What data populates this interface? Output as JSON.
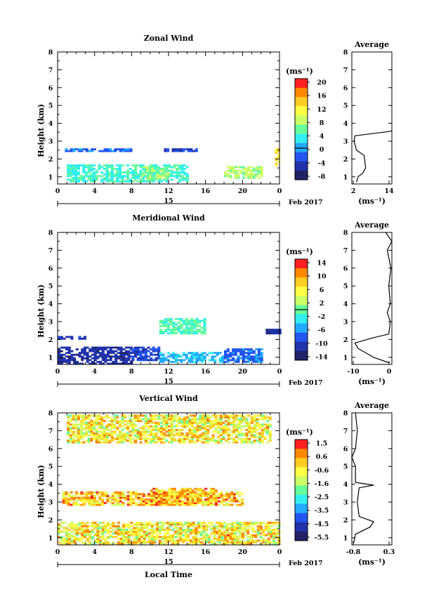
{
  "shared": {
    "time_ticks": [
      "0",
      "4",
      "8",
      "12",
      "16",
      "20",
      "0"
    ],
    "date_day": "15",
    "month_label": "Feb 2017",
    "xlabel": "Local Time",
    "height_label": "Height (km)",
    "height_ticks": [
      "1",
      "2",
      "3",
      "4",
      "5",
      "6",
      "7",
      "8"
    ],
    "unit_label": "(ms⁻¹)",
    "average_title": "Average"
  },
  "chart_data": [
    {
      "id": "zonal",
      "type": "heatmap",
      "title": "Zonal Wind",
      "ylabel": "Height (km)",
      "x_range_hours": [
        0,
        24
      ],
      "ylim_km": [
        0.6,
        8
      ],
      "colorbar_ticks": [
        "20",
        "16",
        "12",
        "8",
        "4",
        "0",
        "-4",
        "-8"
      ],
      "colorbar_range": [
        -10,
        22
      ],
      "colorbar_zero_line": 0,
      "colors": [
        "#ff2020",
        "#ff8800",
        "#ffcc22",
        "#ffff44",
        "#ccff66",
        "#66ff99",
        "#33eeee",
        "#22aaff",
        "#2255ee",
        "#2233aa",
        "#222266"
      ],
      "color_index_range": [
        -10,
        22
      ],
      "regions": [
        {
          "x": [
            1,
            14
          ],
          "y": [
            0.7,
            1.7
          ],
          "value": 4
        },
        {
          "x": [
            9,
            12
          ],
          "y": [
            0.8,
            1.6
          ],
          "value": 7
        },
        {
          "x": [
            18,
            22
          ],
          "y": [
            0.9,
            1.6
          ],
          "value": 8
        },
        {
          "x": [
            11.5,
            15
          ],
          "y": [
            2.4,
            2.6
          ],
          "value": -4
        },
        {
          "x": [
            0.5,
            8
          ],
          "y": [
            2.4,
            2.6
          ],
          "value": -2
        },
        {
          "x": [
            23.5,
            24
          ],
          "y": [
            1.6,
            2.6
          ],
          "value": 13
        }
      ],
      "average_profile": {
        "xlabel": "(ms⁻¹)",
        "x_ticks": [
          "2",
          "14"
        ],
        "xlim": [
          1.5,
          14.5
        ],
        "points": [
          [
            3,
            0.7
          ],
          [
            3.5,
            1
          ],
          [
            5,
            1.2
          ],
          [
            6,
            1.5
          ],
          [
            5.5,
            2.2
          ],
          [
            3,
            2.5
          ],
          [
            2.2,
            3
          ],
          [
            2.5,
            3.3
          ],
          [
            14,
            3.55
          ],
          [
            14.5,
            3.6
          ]
        ]
      }
    },
    {
      "id": "meridional",
      "type": "heatmap",
      "title": "Meridional Wind",
      "ylabel": "Height (km)",
      "x_range_hours": [
        0,
        24
      ],
      "ylim_km": [
        0.6,
        8
      ],
      "colorbar_ticks": [
        "14",
        "10",
        "6",
        "2",
        "-2",
        "-6",
        "-10",
        "-14"
      ],
      "colorbar_range": [
        -16,
        16
      ],
      "colorbar_zero_line": 0,
      "colors": [
        "#ff2020",
        "#ff8800",
        "#ffcc22",
        "#ffff44",
        "#ccff66",
        "#66ff99",
        "#33eeee",
        "#22aaff",
        "#2255ee",
        "#2233aa",
        "#222266"
      ],
      "color_index_range": [
        -16,
        16
      ],
      "regions": [
        {
          "x": [
            0,
            8
          ],
          "y": [
            0.6,
            1.6
          ],
          "value": -12
        },
        {
          "x": [
            8,
            11
          ],
          "y": [
            0.8,
            1.6
          ],
          "value": -10
        },
        {
          "x": [
            11,
            18
          ],
          "y": [
            0.7,
            1.3
          ],
          "value": -5
        },
        {
          "x": [
            18,
            22
          ],
          "y": [
            0.7,
            1.5
          ],
          "value": -8
        },
        {
          "x": [
            11,
            16
          ],
          "y": [
            2.3,
            3.2
          ],
          "value": -1
        },
        {
          "x": [
            0,
            3
          ],
          "y": [
            2,
            2.2
          ],
          "value": -11
        },
        {
          "x": [
            22.5,
            24
          ],
          "y": [
            2.3,
            2.6
          ],
          "value": -12
        }
      ],
      "average_profile": {
        "xlabel": "(ms⁻¹)",
        "x_ticks": [
          "-10",
          "0"
        ],
        "xlim": [
          -13,
          0
        ],
        "points": [
          [
            -1,
            0.7
          ],
          [
            -6,
            1
          ],
          [
            -11,
            1.5
          ],
          [
            -12,
            1.8
          ],
          [
            -6,
            2.1
          ],
          [
            -1,
            2.3
          ],
          [
            -0.5,
            3
          ],
          [
            -1.5,
            3.5
          ],
          [
            -0.5,
            4
          ],
          [
            -1,
            5
          ],
          [
            -0.3,
            6
          ],
          [
            -1.5,
            7
          ],
          [
            0,
            7.5
          ],
          [
            -2,
            8
          ]
        ]
      }
    },
    {
      "id": "vertical",
      "type": "heatmap",
      "title": "Vertical Wind",
      "ylabel": "Height (km)",
      "x_range_hours": [
        0,
        24
      ],
      "ylim_km": [
        0.6,
        8
      ],
      "colorbar_ticks": [
        "1.5",
        "0.6",
        "-0.6",
        "-1.6",
        "-2.5",
        "-3.5",
        "-4.5",
        "-5.5"
      ],
      "colorbar_range": [
        -6,
        2
      ],
      "colorbar_zero_line": null,
      "colors": [
        "#ff2020",
        "#ff8800",
        "#ffcc22",
        "#ffff44",
        "#ccff66",
        "#66ff99",
        "#33eeee",
        "#22aaff",
        "#2255ee",
        "#2233aa",
        "#222266"
      ],
      "color_index_range": [
        -6,
        2
      ],
      "regions": [
        {
          "x": [
            0,
            24
          ],
          "y": [
            0.6,
            1.9
          ],
          "value": -0.4
        },
        {
          "x": [
            18,
            19
          ],
          "y": [
            0.9,
            1.2
          ],
          "value": 0.5
        },
        {
          "x": [
            0.5,
            20
          ],
          "y": [
            2.8,
            3.6
          ],
          "value": 0.1
        },
        {
          "x": [
            10,
            17
          ],
          "y": [
            2.8,
            3.8
          ],
          "value": 0.2
        },
        {
          "x": [
            1,
            23
          ],
          "y": [
            6.3,
            7.8
          ],
          "value": -0.4
        }
      ],
      "average_profile": {
        "xlabel": "(ms⁻¹)",
        "x_ticks": [
          "-0.8",
          "0.3"
        ],
        "xlim": [
          -0.8,
          0.3
        ],
        "points": [
          [
            -0.75,
            0.7
          ],
          [
            -0.7,
            1.2
          ],
          [
            -0.3,
            1.6
          ],
          [
            -0.2,
            1.9
          ],
          [
            -0.6,
            2.2
          ],
          [
            -0.65,
            3
          ],
          [
            -0.6,
            3.8
          ],
          [
            -0.2,
            3.95
          ],
          [
            -0.7,
            4.1
          ],
          [
            -0.7,
            5
          ],
          [
            -0.8,
            5.5
          ],
          [
            -0.7,
            6
          ],
          [
            -0.65,
            7
          ],
          [
            -0.7,
            8
          ]
        ]
      }
    }
  ]
}
